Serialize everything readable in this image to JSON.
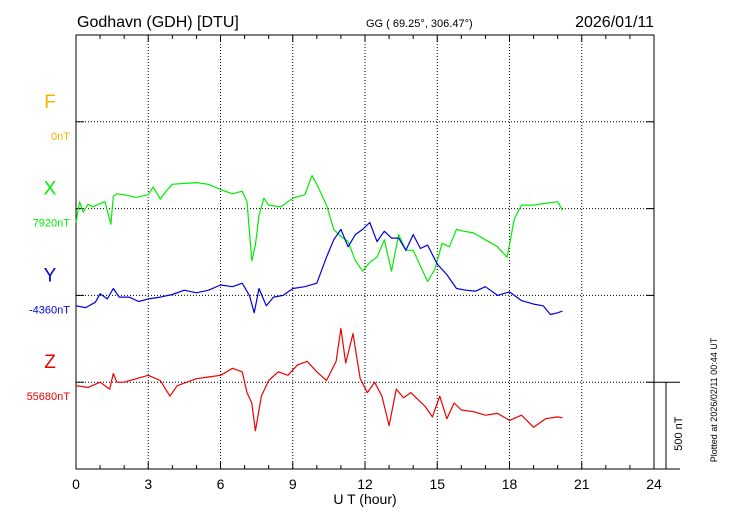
{
  "header": {
    "station": "Godhavn (GDH)  [DTU]",
    "coords": "GG ( 69.25°, 306.47°)",
    "date": "2026/01/11"
  },
  "footer": {
    "plotted": "Plotted at 2026/02/11 00:44 UT"
  },
  "colors": {
    "F": "#f0b400",
    "X": "#00ee00",
    "Y": "#0000dd",
    "Z": "#ee0000",
    "grid": "#000000"
  },
  "chart_data": {
    "type": "line",
    "xlabel": "U T (hour)",
    "xlim": [
      0,
      24
    ],
    "xticks": [
      "0",
      "3",
      "6",
      "9",
      "12",
      "15",
      "18",
      "21",
      "24"
    ],
    "scale_bar": {
      "label": "500 nT",
      "value_nT": 500
    },
    "nT_per_row": 500,
    "series": [
      {
        "name": "F",
        "baseline_label": "0nT",
        "baseline": 0,
        "row": 1,
        "x": [],
        "y": []
      },
      {
        "name": "X",
        "baseline_label": "7920nT",
        "baseline": 7920,
        "row": 2,
        "x": [
          0,
          0.15,
          0.3,
          0.5,
          0.7,
          1.0,
          1.2,
          1.45,
          1.55,
          1.7,
          2.0,
          2.5,
          3.0,
          3.2,
          3.5,
          3.8,
          4.0,
          4.5,
          5.0,
          5.5,
          6.0,
          6.5,
          6.9,
          7.1,
          7.3,
          7.45,
          7.6,
          7.8,
          8.0,
          8.5,
          9.0,
          9.5,
          9.8,
          10.0,
          10.4,
          10.7,
          11.0,
          11.3,
          11.6,
          11.9,
          12.2,
          12.5,
          12.8,
          13.1,
          13.4,
          13.7,
          14.0,
          14.3,
          14.6,
          14.9,
          15.2,
          15.5,
          15.8,
          16.1,
          16.5,
          17.0,
          17.5,
          17.9,
          18.2,
          18.5,
          19.0,
          19.5,
          20.0,
          20.2
        ],
        "y": [
          7840,
          7960,
          7900,
          7945,
          7930,
          7950,
          7960,
          7830,
          7990,
          8005,
          8000,
          7985,
          8000,
          8045,
          7975,
          8030,
          8060,
          8065,
          8070,
          8060,
          8030,
          8005,
          8020,
          7960,
          7620,
          7710,
          7880,
          7980,
          7940,
          7930,
          7980,
          8000,
          8110,
          8060,
          7940,
          7800,
          7760,
          7730,
          7620,
          7560,
          7610,
          7640,
          7740,
          7560,
          7770,
          7680,
          7680,
          7590,
          7500,
          7570,
          7720,
          7700,
          7800,
          7790,
          7780,
          7740,
          7700,
          7640,
          7860,
          7940,
          7940,
          7950,
          7960,
          7910
        ]
      },
      {
        "name": "Y",
        "baseline_label": "-4360nT",
        "baseline": -4360,
        "row": 3,
        "x": [
          0,
          0.4,
          0.8,
          1.0,
          1.3,
          1.55,
          1.8,
          2.2,
          2.6,
          3.0,
          3.5,
          4.0,
          4.5,
          5.0,
          5.5,
          6.0,
          6.5,
          6.9,
          7.2,
          7.4,
          7.6,
          7.9,
          8.2,
          8.6,
          9.0,
          9.5,
          10.0,
          10.4,
          10.7,
          11.0,
          11.3,
          11.6,
          11.9,
          12.2,
          12.5,
          12.8,
          13.1,
          13.4,
          13.7,
          14.0,
          14.3,
          14.6,
          15.0,
          15.4,
          15.8,
          16.2,
          16.6,
          17.0,
          17.5,
          18.0,
          18.5,
          19.0,
          19.4,
          19.7,
          20.0,
          20.2
        ],
        "y": [
          -4420,
          -4430,
          -4400,
          -4350,
          -4380,
          -4320,
          -4370,
          -4370,
          -4395,
          -4380,
          -4370,
          -4355,
          -4330,
          -4345,
          -4330,
          -4300,
          -4310,
          -4290,
          -4360,
          -4460,
          -4320,
          -4420,
          -4370,
          -4360,
          -4320,
          -4310,
          -4290,
          -4140,
          -4040,
          -3980,
          -4080,
          -4010,
          -3980,
          -3940,
          -4050,
          -3990,
          -4030,
          -4030,
          -4100,
          -4010,
          -4090,
          -4070,
          -4180,
          -4240,
          -4320,
          -4330,
          -4335,
          -4310,
          -4360,
          -4340,
          -4390,
          -4410,
          -4420,
          -4470,
          -4460,
          -4450
        ]
      },
      {
        "name": "Z",
        "baseline_label": "55680nT",
        "baseline": 55680,
        "row": 4,
        "x": [
          0,
          0.5,
          1.0,
          1.4,
          1.55,
          1.7,
          2.0,
          2.5,
          3.0,
          3.5,
          3.9,
          4.2,
          4.6,
          5.0,
          5.5,
          6.0,
          6.5,
          6.9,
          7.1,
          7.3,
          7.45,
          7.7,
          8.0,
          8.4,
          8.8,
          9.2,
          9.6,
          10.0,
          10.4,
          10.8,
          11.0,
          11.2,
          11.5,
          11.8,
          12.1,
          12.4,
          12.7,
          13.0,
          13.3,
          13.6,
          13.9,
          14.2,
          14.5,
          14.8,
          15.1,
          15.4,
          15.7,
          16.0,
          16.5,
          17.0,
          17.5,
          18.0,
          18.5,
          19.0,
          19.5,
          20.0,
          20.2
        ],
        "y": [
          55660,
          55650,
          55680,
          55640,
          55730,
          55680,
          55680,
          55700,
          55720,
          55690,
          55600,
          55660,
          55680,
          55700,
          55710,
          55720,
          55760,
          55740,
          55620,
          55560,
          55400,
          55600,
          55690,
          55740,
          55720,
          55780,
          55800,
          55740,
          55690,
          55800,
          55990,
          55790,
          55960,
          55700,
          55620,
          55680,
          55600,
          55430,
          55640,
          55590,
          55620,
          55580,
          55540,
          55480,
          55600,
          55470,
          55560,
          55520,
          55510,
          55490,
          55500,
          55460,
          55490,
          55420,
          55470,
          55480,
          55475
        ]
      }
    ]
  }
}
